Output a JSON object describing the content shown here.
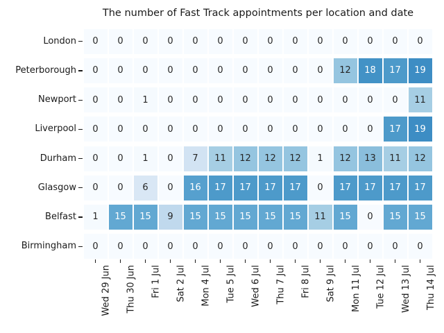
{
  "chart_data": {
    "type": "heatmap",
    "title": "The number of Fast Track appointments per location and date",
    "rows": [
      "London",
      "Peterborough",
      "Newport",
      "Liverpool",
      "Durham",
      "Glasgow",
      "Belfast",
      "Birmingham"
    ],
    "columns": [
      "Wed 29 Jun",
      "Thu 30 Jun",
      "Fri 1 Jul",
      "Sat 2 Jul",
      "Mon 4 Jul",
      "Tue 5 Jul",
      "Wed 6 Jul",
      "Thu 7 Jul",
      "Fri 8 Jul",
      "Sat 9 Jul",
      "Mon 11 Jul",
      "Tue 12 Jul",
      "Wed 13 Jul",
      "Thu 14 Jul"
    ],
    "values": [
      [
        0,
        0,
        0,
        0,
        0,
        0,
        0,
        0,
        0,
        0,
        0,
        0,
        0,
        0
      ],
      [
        0,
        0,
        0,
        0,
        0,
        0,
        0,
        0,
        0,
        0,
        12,
        18,
        17,
        19
      ],
      [
        0,
        0,
        1,
        0,
        0,
        0,
        0,
        0,
        0,
        0,
        0,
        0,
        0,
        11
      ],
      [
        0,
        0,
        0,
        0,
        0,
        0,
        0,
        0,
        0,
        0,
        0,
        0,
        17,
        19
      ],
      [
        0,
        0,
        1,
        0,
        7,
        11,
        12,
        12,
        12,
        1,
        12,
        13,
        11,
        12
      ],
      [
        0,
        0,
        6,
        0,
        16,
        17,
        17,
        17,
        17,
        0,
        17,
        17,
        17,
        17
      ],
      [
        1,
        15,
        15,
        9,
        15,
        15,
        15,
        15,
        15,
        11,
        15,
        0,
        15,
        15
      ],
      [
        0,
        0,
        0,
        0,
        0,
        0,
        0,
        0,
        0,
        0,
        0,
        0,
        0,
        0
      ]
    ],
    "colormap": "Blues",
    "vmin": 0,
    "vmax": 19,
    "legend": "none",
    "grid_gap_color": "#ffffff",
    "value_colors": {
      "0": "#f7fbff",
      "1": "#f5fafe",
      "6": "#d9e7f5",
      "7": "#d2e3f3",
      "9": "#c0d9ed",
      "11": "#a6cee4",
      "12": "#95c5e0",
      "13": "#8abedc",
      "15": "#62a8d2",
      "16": "#56a0ce",
      "17": "#4d9aca",
      "18": "#4292c6",
      "19": "#3d8dc4"
    },
    "annotation_colors": {
      "dark": "#262626",
      "light": "#ffffff"
    },
    "light_text_threshold": 14
  }
}
